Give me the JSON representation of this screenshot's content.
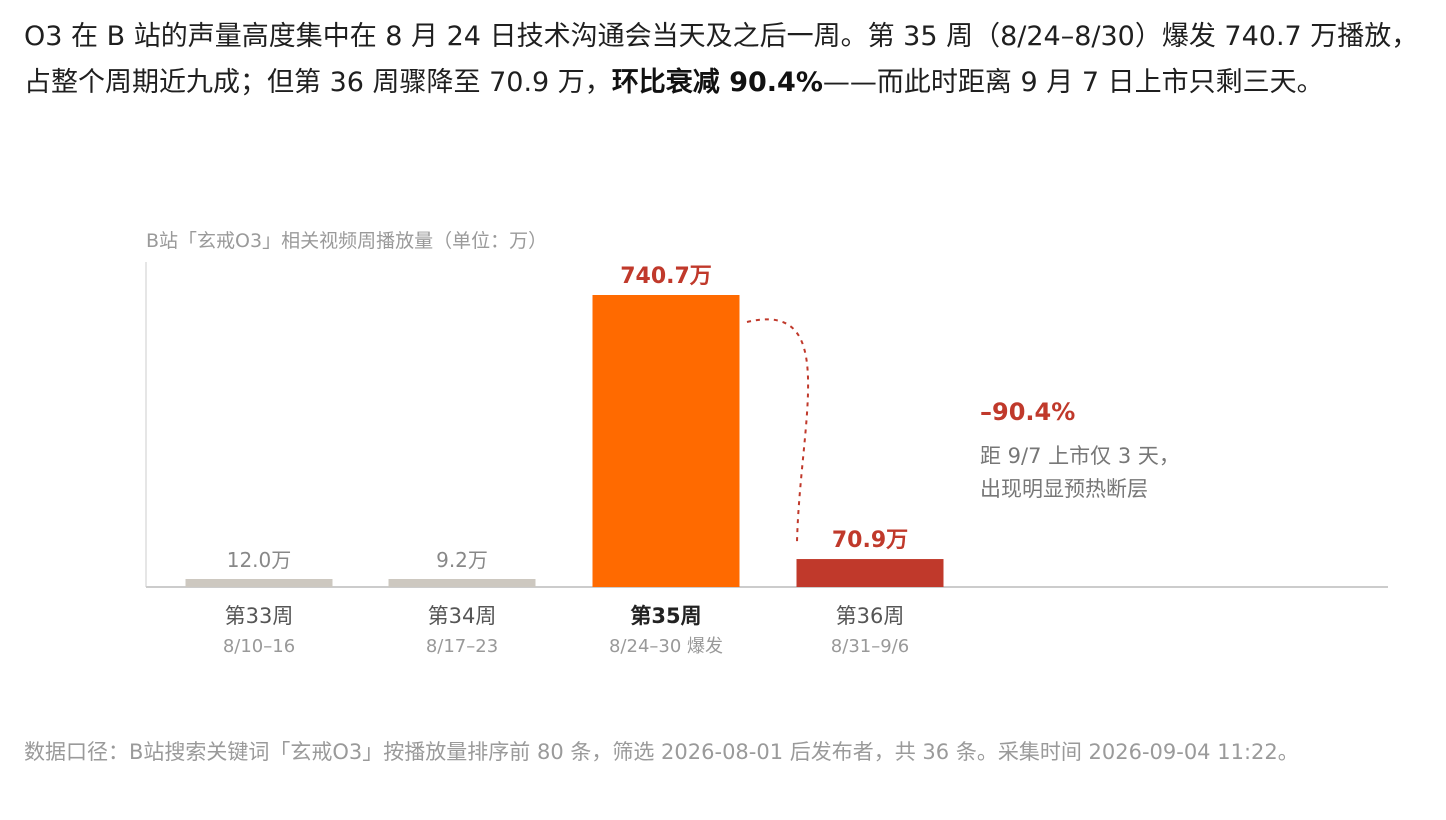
{
  "intro": {
    "part1": "O3 在 B 站的声量高度集中在 8 月 24 日技术沟通会当天及之后一周。第 35 周（8/24–8/30）爆发 740.7 万播放，占整个周期近九成；但第 36 周骤降至 70.9 万，",
    "bold": "环比衰减 90.4%",
    "part2": "——而此时距离 9 月 7 日上市只剩三天。"
  },
  "chart_data": {
    "type": "bar",
    "title": "B站「玄戒O3」相关视频周播放量（单位：万）",
    "unit": "万",
    "categories": [
      "第33周",
      "第34周",
      "第35周",
      "第36周"
    ],
    "sublabels": [
      "8/10–16",
      "8/17–23",
      "8/24–30 爆发",
      "8/31–9/6"
    ],
    "values": [
      12.0,
      9.2,
      740.7,
      70.9
    ],
    "value_labels": [
      "12.0万",
      "9.2万",
      "740.7万",
      "70.9万"
    ],
    "ylim": [
      0,
      740.7
    ],
    "colors": [
      "#cdc8c0",
      "#cdc8c0",
      "#ff6a00",
      "#c0392b"
    ],
    "value_label_colors": [
      "#888888",
      "#888888",
      "#c0392b",
      "#c0392b"
    ],
    "highlight_index": 2,
    "grid": false,
    "annotation": {
      "change": "–90.4%",
      "note_line1": "距 9/7 上市仅 3 天，",
      "note_line2": "出现明显预热断层"
    }
  },
  "source": "数据口径：B站搜索关键词「玄戒O3」按播放量排序前 80 条，筛选 2026-08-01 后发布者，共 36 条。采集时间 2026-09-04 11:22。"
}
